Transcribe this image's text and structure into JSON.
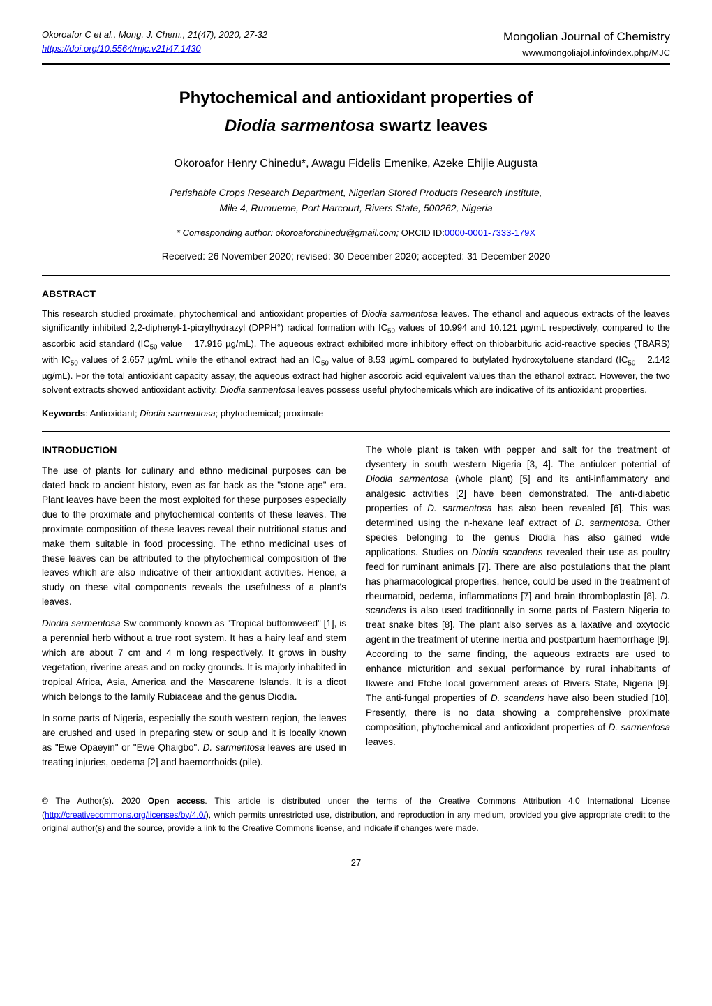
{
  "header": {
    "left_line1": "Okoroafor C et al., Mong. J. Chem., 21(47), 2020, 27-32",
    "left_link": "https://doi.org/10.5564/mjc.v21i47.1430",
    "right_line1": "Mongolian Journal of Chemistry",
    "right_line2": "www.mongoliajol.info/index.php/MJC"
  },
  "title": {
    "line1": "Phytochemical and antioxidant properties of",
    "line2_italic": "Diodia sarmentosa",
    "line2_rest": " swartz leaves"
  },
  "authors": "Okoroafor Henry Chinedu*, Awagu Fidelis Emenike, Azeke Ehijie Augusta",
  "affiliation": {
    "line1": "Perishable Crops Research Department, Nigerian Stored Products Research Institute,",
    "line2": "Mile 4, Rumueme, Port Harcourt, Rivers State, 500262, Nigeria"
  },
  "corresponding": {
    "prefix": "* Corresponding author: okoroaforchinedu@gmail.com; ",
    "orcid_label": "ORCID ID:",
    "orcid_link": "0000-0001-7333-179X"
  },
  "received": "Received: 26 November 2020; revised: 30 December 2020; accepted: 31 December 2020",
  "abstract": {
    "heading": "ABSTRACT",
    "body_parts": [
      "This research studied proximate, phytochemical and antioxidant properties of ",
      "Diodia sarmentosa",
      " leaves. The ethanol and aqueous extracts of the leaves significantly inhibited 2,2-diphenyl-1-picrylhydrazyl (DPPH°) radical formation with IC",
      "50",
      " values of 10.994 and 10.121 µg/mL respectively, compared to the ascorbic acid standard (IC",
      "50",
      " value = 17.916 µg/mL). The aqueous extract exhibited more inhibitory effect on thiobarbituric acid-reactive species (TBARS) with IC",
      "50",
      " values of 2.657  µg/mL while the ethanol extract had an IC",
      "50",
      " value of 8.53 µg/mL compared to butylated hydroxytoluene standard (IC",
      "50",
      " = 2.142 µg/mL). For the total antioxidant capacity assay, the aqueous extract had higher ascorbic acid equivalent values than the ethanol extract. However, the two solvent extracts showed antioxidant activity. ",
      "Diodia sarmentosa",
      " leaves possess useful phytochemicals which are indicative of its antioxidant properties."
    ]
  },
  "keywords": {
    "label": "Keywords",
    "text_before": ": Antioxidant; ",
    "italic": "Diodia sarmentosa",
    "text_after": "; phytochemical; proximate"
  },
  "intro": {
    "heading": "INTRODUCTION",
    "left_p1": "The use of plants for culinary and ethno medicinal purposes can be dated back to ancient history, even as far back as  the \"stone age\" era. Plant leaves have been the most exploited for these purposes especially due to the proximate and phytochemical contents of these leaves. The proximate composition of these leaves reveal their nutritional status and make them suitable in food processing. The ethno medicinal uses of these leaves can be attributed to the phytochemical composition of the leaves which are also indicative of their antioxidant activities. Hence, a study on these vital components reveals the usefulness of a plant's leaves.",
    "left_p2_pre": "",
    "left_p2_ital": "Diodia sarmentosa",
    "left_p2_post": " Sw commonly known as \"Tropical buttomweed\" [1], is a perennial herb without a true root system. It has a hairy leaf and stem which are about 7 cm and 4 m long respectively. It grows in bushy vegetation, riverine areas and on rocky grounds. It is majorly inhabited in tropical Africa, Asia, America and the Mascarene Islands. It is a dicot which belongs to the family Rubiaceae and the genus Diodia.",
    "left_p3_pre": "In some parts of Nigeria, especially the south western region, the leaves are crushed and used in preparing stew or soup and it is locally known as \"Ewe Opaeyin\" or \"Ewe Ọhaigbo\". ",
    "left_p3_ital": "D. sarmentosa",
    "left_p3_post": " leaves are used in treating injuries, oedema [2] and haemorrhoids (pile).",
    "right_parts": [
      "The whole plant is taken with pepper and salt for the treatment of dysentery in south western Nigeria [3, 4]. The antiulcer potential of ",
      "Diodia sarmentosa",
      " (whole plant) [5] and its anti-inflammatory and analgesic activities [2] have been demonstrated. The anti-diabetic properties of ",
      "D. sarmentosa",
      " has also been revealed [6]. This was determined using the n-hexane leaf extract of ",
      "D. sarmentosa",
      ". Other species belonging to the genus Diodia has also gained wide applications. Studies on ",
      "Diodia scandens",
      " revealed their use as poultry feed for ruminant animals [7]. There are also postulations that the plant has pharmacological properties, hence, could be used in the treatment of rheumatoid, oedema, inflammations [7] and brain thromboplastin [8]. ",
      "D. scandens",
      " is also used traditionally in some parts of Eastern Nigeria to treat snake bites [8]. The plant also serves as a laxative and oxytocic agent in the treatment of uterine inertia and postpartum haemorrhage [9]. According to the same finding, the aqueous extracts are used to enhance micturition and sexual performance by rural inhabitants of Ikwere and Etche local government areas of Rivers State, Nigeria [9]. The anti-fungal properties of ",
      "D. scandens",
      " have also been studied [10]. Presently, there is no data showing a comprehensive proximate composition, phytochemical and antioxidant properties of ",
      "D. sarmentosa",
      " leaves."
    ]
  },
  "license": {
    "pre": "© The Author(s). 2020 ",
    "bold": "Open access",
    "mid": ". This article is distributed under the terms of the Creative Commons Attribution 4.0 International License (",
    "link": "http://creativecommons.org/licenses/by/4.0/",
    "post": "), which permits unrestricted use, distribution, and reproduction in any medium, provided you give appropriate credit to the original author(s) and the source, provide a link to the Creative Commons license, and indicate if changes were made."
  },
  "pagenum": "27",
  "colors": {
    "text": "#000000",
    "bg": "#ffffff",
    "link": "#0000ee",
    "rule": "#000000"
  },
  "typography": {
    "body_fontsize_pt": 10,
    "title_fontsize_pt": 18,
    "abstract_fontsize_pt": 9.5,
    "font_family": "Arial, Helvetica, sans-serif"
  }
}
